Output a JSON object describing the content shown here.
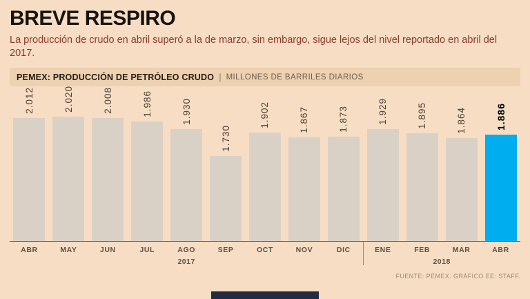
{
  "page": {
    "title": "BREVE RESPIRO",
    "subtitle": "La producción de crudo en abril superó a la de marzo, sin embargo, sigue lejos del nivel reportado en abril del 2017.",
    "source": "FUENTE: PEMEX. GRÁFICO EE: STAFF."
  },
  "chart_header": {
    "title": "PEMEX: PRODUCCIÓN DE PETRÓLEO CRUDO",
    "separator": "|",
    "units": "MILLONES DE BARRILES DIARIOS"
  },
  "chart_data": {
    "type": "bar",
    "title": "PEMEX: PRODUCCIÓN DE PETRÓLEO CRUDO",
    "ylabel": "MILLONES DE BARRILES DIARIOS",
    "xlabel": "",
    "categories": [
      "ABR",
      "MAY",
      "JUN",
      "JUL",
      "AGO",
      "SEP",
      "OCT",
      "NOV",
      "DIC",
      "ENE",
      "FEB",
      "MAR",
      "ABR"
    ],
    "values": [
      2.012,
      2.02,
      2.008,
      1.986,
      1.93,
      1.73,
      1.902,
      1.867,
      1.873,
      1.929,
      1.895,
      1.864,
      1.886
    ],
    "value_labels": [
      "2.012",
      "2.020",
      "2.008",
      "1.986",
      "1.930",
      "1.730",
      "1.902",
      "1.867",
      "1.873",
      "1.929",
      "1.895",
      "1.864",
      "1.886"
    ],
    "year_groups": [
      {
        "label": "2017",
        "start": 0,
        "count": 9
      },
      {
        "label": "2018",
        "start": 9,
        "count": 4
      }
    ],
    "highlight_index": 12,
    "bar_color": "#d9d1c6",
    "highlight_color": "#00aeef",
    "background_color": "#f7ddc3",
    "grid": false,
    "legend": null,
    "value_labels_rotated": true,
    "baseline_cropped": true
  }
}
